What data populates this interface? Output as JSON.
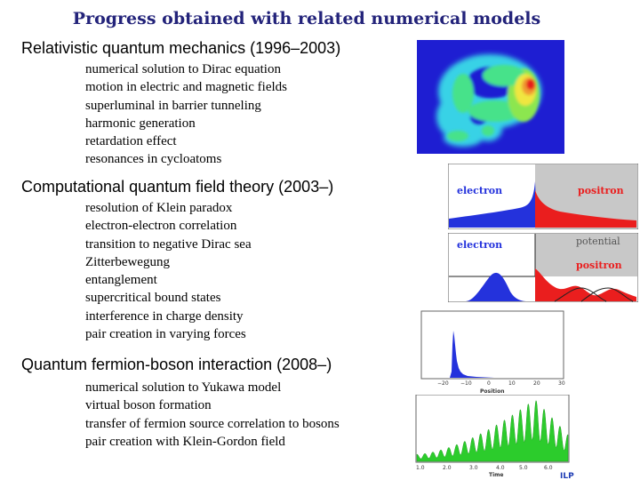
{
  "title": "Progress obtained with related numerical models",
  "sections": [
    {
      "heading": "Relativistic quantum mechanics (1996–2003)",
      "items": [
        "numerical solution to Dirac equation",
        "motion in electric and magnetic fields",
        "superluminal in barrier tunneling",
        "harmonic generation",
        "retardation effect",
        "resonances in cycloatoms"
      ]
    },
    {
      "heading": "Computational quantum field theory (2003–)",
      "items": [
        "resolution of Klein paradox",
        "electron-electron correlation",
        "transition to negative Dirac sea",
        "Zitterbewegung",
        "entanglement",
        "supercritical bound states",
        "interference in charge density",
        "pair creation in varying forces"
      ]
    },
    {
      "heading": "Quantum fermion-boson interaction (2008–)",
      "items": [
        "numerical solution to Yukawa model",
        "virtual boson formation",
        "transfer of fermion source correlation to bosons",
        "pair creation with Klein-Gordon field"
      ]
    }
  ],
  "figures": {
    "panel1_left_label": "electron",
    "panel1_right_label": "positron",
    "panel2_left_label": "electron",
    "panel2_potential_label": "potential",
    "panel2_right_label": "positron",
    "position_axis": {
      "ticks": [
        "−20",
        "−10",
        "0",
        "10",
        "20",
        "30"
      ],
      "label": "Position"
    },
    "time_axis": {
      "ticks": [
        "1.0",
        "2.0",
        "3.0",
        "4.0",
        "5.0",
        "6.0"
      ],
      "label": "Time"
    },
    "logo": "ILP"
  }
}
